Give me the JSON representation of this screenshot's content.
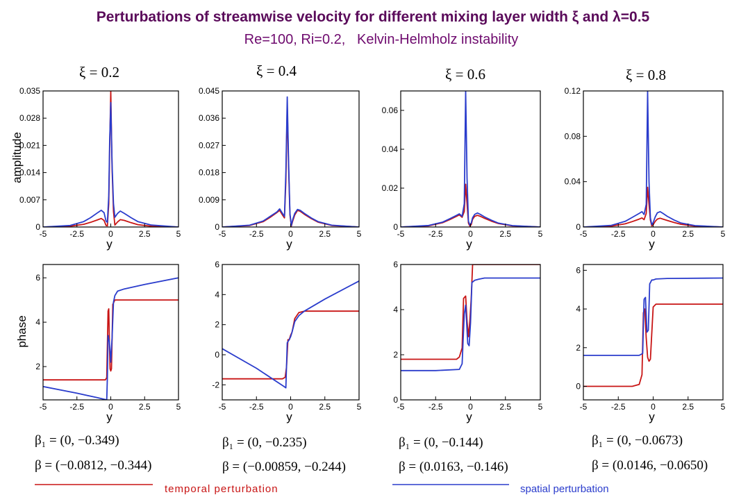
{
  "title": "Perturbations of streamwise velocity for different mixing layer width ξ and λ=0.5",
  "subtitle": "Re=100, Ri=0.2,   Kelvin-Helmholz instability",
  "colors": {
    "title": "#5a0a5a",
    "subtitle": "#6e0a6e",
    "temporal": "#c81414",
    "spatial": "#2a3ccc",
    "legend_text_temporal": "#c81414",
    "legend_text_spatial": "#2a3ccc",
    "axis": "#000000"
  },
  "legend": {
    "temporal": "temporal perturbation",
    "spatial": "spatial perturbation"
  },
  "chart_data": [
    {
      "type": "line",
      "panel_title": "ξ = 0.2",
      "quantity": "amplitude",
      "xlabel": "y",
      "ylabel": "amplitude",
      "xlim": [
        -5,
        5
      ],
      "ylim": [
        0,
        0.035
      ],
      "x_ticks": [
        "-5",
        "-2.5",
        "0",
        "2.5",
        "5"
      ],
      "y_ticks": [
        0,
        0.007,
        0.014,
        0.021,
        0.028,
        0.035
      ],
      "y_tick_labels": [
        "0",
        "0.007",
        "0.014",
        "0.021",
        "0.028",
        "0.035"
      ],
      "series": [
        {
          "key": "temporal",
          "x": [
            -5,
            -3,
            -2,
            -1.5,
            -1,
            -0.7,
            -0.5,
            -0.35,
            -0.25,
            -0.15,
            -0.08,
            0,
            0.1,
            0.2,
            0.3,
            0.5,
            0.7,
            1,
            1.5,
            2,
            3,
            5
          ],
          "y": [
            0,
            0.0002,
            0.0007,
            0.0012,
            0.0018,
            0.0022,
            0.0017,
            0.0004,
            0.0003,
            0.006,
            0.02,
            0.035,
            0.015,
            0.004,
            0.0005,
            0.0013,
            0.0019,
            0.0017,
            0.0011,
            0.0006,
            0.0002,
            0
          ]
        },
        {
          "key": "spatial",
          "x": [
            -5,
            -3,
            -2,
            -1.5,
            -1,
            -0.7,
            -0.5,
            -0.35,
            -0.25,
            -0.15,
            -0.08,
            0,
            0.1,
            0.2,
            0.3,
            0.5,
            0.7,
            1,
            1.5,
            2,
            3,
            5
          ],
          "y": [
            0,
            0.0004,
            0.0014,
            0.0024,
            0.0036,
            0.0043,
            0.0037,
            0.0015,
            0.0012,
            0.008,
            0.022,
            0.032,
            0.016,
            0.006,
            0.0025,
            0.0035,
            0.0041,
            0.0035,
            0.0024,
            0.0014,
            0.0005,
            0
          ]
        }
      ]
    },
    {
      "type": "line",
      "panel_title": "ξ = 0.4",
      "quantity": "amplitude",
      "xlabel": "y",
      "ylabel": "",
      "xlim": [
        -5,
        5
      ],
      "ylim": [
        0,
        0.045
      ],
      "x_ticks": [
        "-5",
        "-2.5",
        "0",
        "2.5",
        "5"
      ],
      "y_ticks": [
        0,
        0.009,
        0.018,
        0.027,
        0.036,
        0.045
      ],
      "y_tick_labels": [
        "0",
        "0.009",
        "0.018",
        "0.027",
        "0.036",
        "0.045"
      ],
      "series": [
        {
          "key": "temporal",
          "x": [
            -5,
            -3,
            -2,
            -1.5,
            -1,
            -0.8,
            -0.6,
            -0.45,
            -0.35,
            -0.25,
            -0.15,
            -0.05,
            0.05,
            0.15,
            0.3,
            0.5,
            0.7,
            1,
            1.5,
            2,
            3,
            5
          ],
          "y": [
            0,
            0.0005,
            0.0018,
            0.0032,
            0.0048,
            0.0055,
            0.004,
            0.003,
            0.015,
            0.04,
            0.02,
            0.004,
            0.0003,
            0.002,
            0.004,
            0.0055,
            0.0052,
            0.0042,
            0.0028,
            0.0016,
            0.0005,
            0
          ]
        },
        {
          "key": "spatial",
          "x": [
            -5,
            -3,
            -2,
            -1.5,
            -1,
            -0.8,
            -0.6,
            -0.45,
            -0.35,
            -0.25,
            -0.15,
            -0.05,
            0.05,
            0.15,
            0.3,
            0.5,
            0.7,
            1,
            1.5,
            2,
            3,
            5
          ],
          "y": [
            0,
            0.0006,
            0.002,
            0.0035,
            0.005,
            0.006,
            0.0045,
            0.0035,
            0.018,
            0.043,
            0.022,
            0.0045,
            0.0005,
            0.0025,
            0.0045,
            0.0058,
            0.0055,
            0.0045,
            0.003,
            0.0018,
            0.0006,
            0
          ]
        }
      ]
    },
    {
      "type": "line",
      "panel_title": "ξ = 0.6",
      "quantity": "amplitude",
      "xlabel": "y",
      "ylabel": "",
      "xlim": [
        -5,
        5
      ],
      "ylim": [
        0,
        0.07
      ],
      "x_ticks": [
        "-5",
        "-2.5",
        "0",
        "2.5",
        "5"
      ],
      "y_ticks": [
        0,
        0.02,
        0.04,
        0.06
      ],
      "y_tick_labels": [
        "0",
        "0.02",
        "0.04",
        "0.06"
      ],
      "series": [
        {
          "key": "temporal",
          "x": [
            -5,
            -3,
            -2,
            -1.5,
            -1,
            -0.8,
            -0.6,
            -0.45,
            -0.35,
            -0.25,
            -0.15,
            -0.05,
            0.05,
            0.15,
            0.3,
            0.5,
            0.7,
            1,
            1.5,
            2,
            3,
            5
          ],
          "y": [
            0,
            0.0006,
            0.0022,
            0.0038,
            0.0055,
            0.0062,
            0.005,
            0.008,
            0.022,
            0.012,
            0.002,
            0.0005,
            0.0012,
            0.004,
            0.0055,
            0.006,
            0.0055,
            0.0045,
            0.003,
            0.0018,
            0.0006,
            0
          ]
        },
        {
          "key": "spatial",
          "x": [
            -5,
            -3,
            -2,
            -1.5,
            -1,
            -0.8,
            -0.6,
            -0.45,
            -0.35,
            -0.25,
            -0.15,
            -0.05,
            0.05,
            0.15,
            0.3,
            0.5,
            0.7,
            1,
            1.5,
            2,
            3,
            5
          ],
          "y": [
            0,
            0.0008,
            0.0025,
            0.0042,
            0.006,
            0.0068,
            0.0055,
            0.012,
            0.07,
            0.025,
            0.003,
            0.001,
            0.002,
            0.0048,
            0.0065,
            0.0072,
            0.0065,
            0.0052,
            0.0035,
            0.002,
            0.0007,
            0
          ]
        }
      ]
    },
    {
      "type": "line",
      "panel_title": "ξ = 0.8",
      "quantity": "amplitude",
      "xlabel": "y",
      "ylabel": "",
      "xlim": [
        -5,
        5
      ],
      "ylim": [
        0,
        0.12
      ],
      "x_ticks": [
        "-5",
        "-2.5",
        "0",
        "2.5",
        "5"
      ],
      "y_ticks": [
        0,
        0.04,
        0.08,
        0.12
      ],
      "y_tick_labels": [
        "0",
        "0.04",
        "0.08",
        "0.12"
      ],
      "series": [
        {
          "key": "temporal",
          "x": [
            -5,
            -3,
            -2,
            -1.5,
            -1,
            -0.8,
            -0.65,
            -0.5,
            -0.4,
            -0.3,
            -0.2,
            -0.1,
            0,
            0.15,
            0.3,
            0.5,
            0.7,
            1,
            1.5,
            2,
            3,
            5
          ],
          "y": [
            0,
            0.0008,
            0.0028,
            0.0048,
            0.007,
            0.008,
            0.0065,
            0.012,
            0.035,
            0.02,
            0.006,
            0.001,
            0.002,
            0.005,
            0.007,
            0.0078,
            0.007,
            0.0058,
            0.004,
            0.0024,
            0.0008,
            0
          ]
        },
        {
          "key": "spatial",
          "x": [
            -5,
            -3,
            -2,
            -1.5,
            -1,
            -0.8,
            -0.65,
            -0.5,
            -0.4,
            -0.3,
            -0.2,
            -0.1,
            0,
            0.15,
            0.3,
            0.5,
            0.7,
            1,
            1.5,
            2,
            3,
            5
          ],
          "y": [
            0,
            0.0015,
            0.005,
            0.0085,
            0.012,
            0.0135,
            0.011,
            0.02,
            0.12,
            0.04,
            0.008,
            0.002,
            0.004,
            0.009,
            0.0125,
            0.0135,
            0.012,
            0.0095,
            0.0062,
            0.0035,
            0.0012,
            0
          ]
        }
      ]
    },
    {
      "type": "line",
      "quantity": "phase",
      "xlabel": "y",
      "ylabel": "phase",
      "xlim": [
        -5,
        5
      ],
      "ylim": [
        0.5,
        6.6
      ],
      "x_ticks": [
        "-5",
        "-2.5",
        "0",
        "2.5",
        "5"
      ],
      "y_ticks": [
        2,
        4,
        6
      ],
      "y_tick_labels": [
        "2",
        "4",
        "6"
      ],
      "series": [
        {
          "key": "temporal",
          "x": [
            -5,
            -0.4,
            -0.3,
            -0.2,
            -0.15,
            -0.1,
            -0.05,
            0,
            0.05,
            0.15,
            0.3,
            0.4,
            0.5,
            5
          ],
          "y": [
            1.4,
            1.4,
            1.5,
            4.5,
            4.6,
            3.0,
            1.9,
            1.8,
            1.9,
            4.8,
            5.0,
            5.0,
            5.0,
            5.0
          ]
        },
        {
          "key": "spatial",
          "x": [
            -5,
            -2.5,
            -1,
            -0.3,
            -0.25,
            -0.2,
            -0.1,
            0,
            0.1,
            0.2,
            0.3,
            0.5,
            1,
            2.5,
            5
          ],
          "y": [
            1.1,
            0.8,
            0.6,
            0.5,
            1.5,
            3.4,
            3.1,
            2.2,
            3.3,
            4.9,
            5.2,
            5.4,
            5.5,
            5.7,
            6.0
          ]
        }
      ]
    },
    {
      "type": "line",
      "quantity": "phase",
      "xlabel": "y",
      "ylabel": "",
      "xlim": [
        -5,
        5
      ],
      "ylim": [
        -3,
        6
      ],
      "x_ticks": [
        "-5",
        "-2.5",
        "0",
        "2.5",
        "5"
      ],
      "y_ticks": [
        -2,
        0,
        2,
        4,
        6
      ],
      "y_tick_labels": [
        "-2",
        "0",
        "2",
        "4",
        "6"
      ],
      "series": [
        {
          "key": "temporal",
          "x": [
            -5,
            -0.6,
            -0.4,
            -0.3,
            -0.2,
            -0.1,
            0,
            0.1,
            0.3,
            0.6,
            1,
            5
          ],
          "y": [
            -1.6,
            -1.6,
            -1.5,
            -0.8,
            1.0,
            1.0,
            1.3,
            1.5,
            2.4,
            2.8,
            2.9,
            2.9
          ]
        },
        {
          "key": "spatial",
          "x": [
            -5,
            -2.5,
            -0.5,
            -0.35,
            -0.25,
            -0.1,
            0,
            0.1,
            0.3,
            0.6,
            1,
            2.5,
            5
          ],
          "y": [
            0.4,
            -0.9,
            -2.1,
            -2.2,
            0.8,
            1.0,
            1.2,
            1.5,
            2.2,
            2.6,
            2.9,
            3.7,
            4.9
          ]
        }
      ]
    },
    {
      "type": "line",
      "quantity": "phase",
      "xlabel": "y",
      "ylabel": "",
      "xlim": [
        -5,
        5
      ],
      "ylim": [
        0,
        6
      ],
      "x_ticks": [
        "-5",
        "-2.5",
        "0",
        "2.5",
        "5"
      ],
      "y_ticks": [
        0,
        2,
        4,
        6
      ],
      "y_tick_labels": [
        "0",
        "2",
        "4",
        "6"
      ],
      "series": [
        {
          "key": "temporal",
          "x": [
            -5,
            -1,
            -0.8,
            -0.6,
            -0.5,
            -0.35,
            -0.25,
            -0.15,
            -0.05,
            0.05,
            0.15,
            5
          ],
          "y": [
            1.8,
            1.8,
            1.9,
            2.3,
            4.5,
            4.6,
            3.5,
            2.8,
            3.5,
            4.5,
            6.0,
            6.0
          ]
        },
        {
          "key": "spatial",
          "x": [
            -5,
            -2.5,
            -0.8,
            -0.6,
            -0.45,
            -0.35,
            -0.2,
            -0.1,
            0,
            0.1,
            0.3,
            0.6,
            1,
            5
          ],
          "y": [
            1.3,
            1.3,
            1.35,
            1.6,
            3.8,
            4.2,
            2.5,
            2.4,
            3.4,
            5.2,
            5.3,
            5.35,
            5.4,
            5.4
          ]
        }
      ]
    },
    {
      "type": "line",
      "quantity": "phase",
      "xlabel": "y",
      "ylabel": "",
      "xlim": [
        -5,
        5
      ],
      "ylim": [
        -0.7,
        6.3
      ],
      "x_ticks": [
        "-5",
        "-2.5",
        "0",
        "2.5",
        "5"
      ],
      "y_ticks": [
        0,
        2,
        4,
        6
      ],
      "y_tick_labels": [
        "0",
        "2",
        "4",
        "6"
      ],
      "series": [
        {
          "key": "temporal",
          "x": [
            -5,
            -1.5,
            -1,
            -0.8,
            -0.7,
            -0.6,
            -0.5,
            -0.4,
            -0.3,
            -0.2,
            0,
            0.2,
            5
          ],
          "y": [
            0,
            0,
            0.1,
            0.6,
            3.8,
            4.0,
            2.5,
            1.5,
            1.3,
            1.4,
            4.1,
            4.25,
            4.25
          ]
        },
        {
          "key": "spatial",
          "x": [
            -5,
            -1,
            -0.75,
            -0.65,
            -0.55,
            -0.45,
            -0.35,
            -0.25,
            -0.1,
            0,
            0.2,
            1,
            5
          ],
          "y": [
            1.6,
            1.6,
            1.7,
            4.5,
            4.6,
            2.8,
            2.9,
            5.3,
            5.5,
            5.5,
            5.55,
            5.58,
            5.6
          ]
        }
      ]
    }
  ],
  "beta_labels": [
    {
      "beta1": "β₁ = (0, −0.349)",
      "beta": "β = (−0.0812, −0.344)"
    },
    {
      "beta1": "β₁ = (0, −0.235)",
      "beta": "β = (−0.00859, −0.244)"
    },
    {
      "beta1": "β₁ = (0, −0.144)",
      "beta": "β = (0.0163, −0.146)"
    },
    {
      "beta1": "β₁ = (0, −0.0673)",
      "beta": "β = (0.0146, −0.0650)"
    }
  ]
}
